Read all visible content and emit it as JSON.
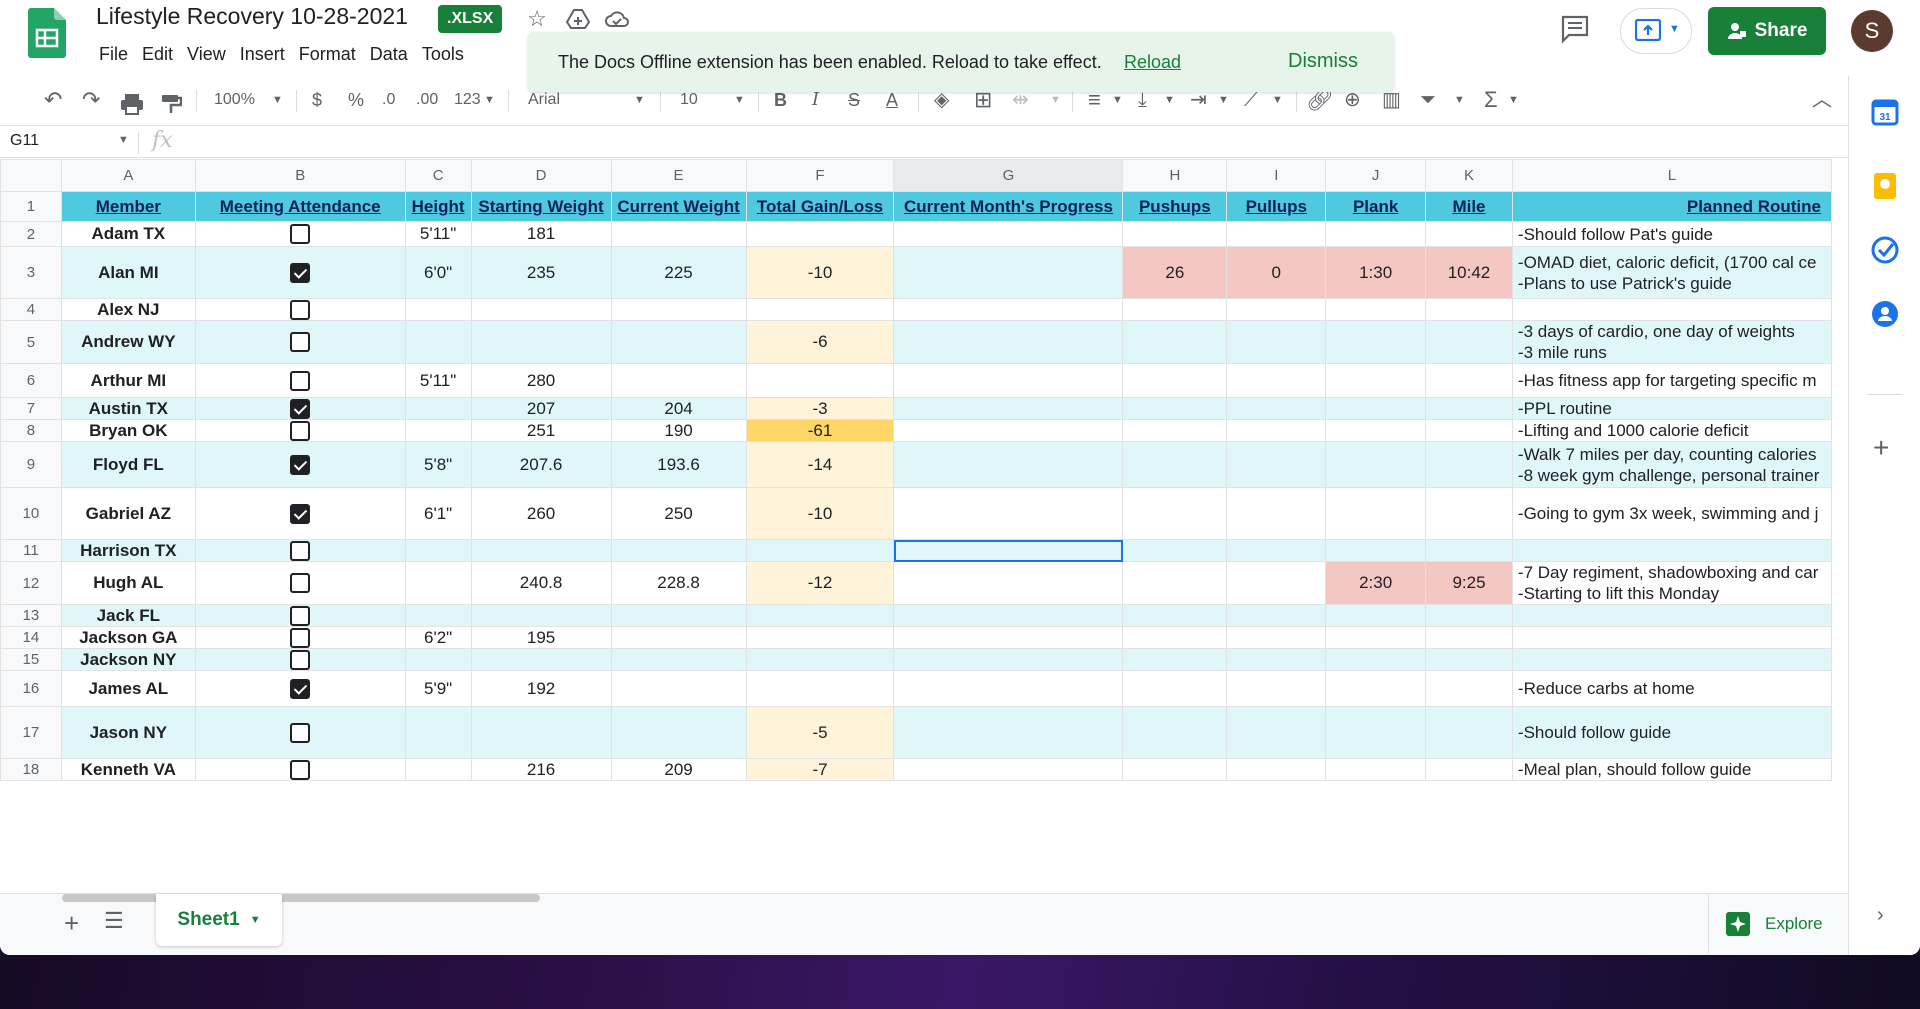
{
  "app": {
    "doc_title": "Lifestyle Recovery 10-28-2021",
    "file_badge": ".XLSX",
    "menu": [
      "File",
      "Edit",
      "View",
      "Insert",
      "Format",
      "Data",
      "Tools"
    ],
    "share_label": "Share",
    "avatar_letter": "S"
  },
  "toast": {
    "message": "The Docs Offline extension has been enabled. Reload to take effect.",
    "reload_label": "Reload",
    "dismiss_label": "Dismiss"
  },
  "toolbar": {
    "zoom": "100%",
    "currency": "$",
    "percent": "%",
    "dec_decrease": ".0",
    "dec_increase": ".00",
    "more_formats": "123",
    "font": "Arial",
    "font_size": "10",
    "bold": "B",
    "italic": "I",
    "strike": "S",
    "text_color": "A"
  },
  "formula_bar": {
    "name_box": "G11",
    "fx": "fx"
  },
  "grid": {
    "columns": [
      "A",
      "B",
      "C",
      "D",
      "E",
      "F",
      "G",
      "H",
      "I",
      "J",
      "K",
      "L"
    ],
    "selected_column": "G",
    "headers": [
      "Member",
      "Meeting Attendance",
      "Height",
      "Starting Weight",
      "Current Weight",
      "Total Gain/Loss",
      "Current Month's Progress",
      "Pushups",
      "Pullups",
      "Plank",
      "Mile",
      "Planned Routine"
    ],
    "rows": [
      {
        "num": "2",
        "member": "Adam TX",
        "att": false,
        "height": "5'11\"",
        "start": "181",
        "current": "",
        "gain": "",
        "pushups": "",
        "pullups": "",
        "plank": "",
        "mile": "",
        "routine": "-Should follow Pat's guide"
      },
      {
        "num": "3",
        "member": "Alan MI",
        "att": true,
        "height": "6'0\"",
        "start": "235",
        "current": "225",
        "gain": "-10",
        "pushups": "26",
        "pullups": "0",
        "plank": "1:30",
        "mile": "10:42",
        "routine": "-OMAD diet, caloric deficit, (1700 cal ce\n-Plans to use Patrick's guide"
      },
      {
        "num": "4",
        "member": "Alex NJ",
        "att": false,
        "height": "",
        "start": "",
        "current": "",
        "gain": "",
        "pushups": "",
        "pullups": "",
        "plank": "",
        "mile": "",
        "routine": ""
      },
      {
        "num": "5",
        "member": "Andrew WY",
        "att": false,
        "height": "",
        "start": "",
        "current": "",
        "gain": "-6",
        "pushups": "",
        "pullups": "",
        "plank": "",
        "mile": "",
        "routine": "-3 days of cardio, one day of weights\n-3 mile runs"
      },
      {
        "num": "6",
        "member": "Arthur MI",
        "att": false,
        "height": "5'11\"",
        "start": "280",
        "current": "",
        "gain": "",
        "pushups": "",
        "pullups": "",
        "plank": "",
        "mile": "",
        "routine": "-Has fitness app for targeting specific m"
      },
      {
        "num": "7",
        "member": "Austin TX",
        "att": true,
        "height": "",
        "start": "207",
        "current": "204",
        "gain": "-3",
        "pushups": "",
        "pullups": "",
        "plank": "",
        "mile": "",
        "routine": "-PPL routine"
      },
      {
        "num": "8",
        "member": "Bryan OK",
        "att": false,
        "height": "",
        "start": "251",
        "current": "190",
        "gain": "-61",
        "pushups": "",
        "pullups": "",
        "plank": "",
        "mile": "",
        "routine": "-Lifting and 1000 calorie deficit"
      },
      {
        "num": "9",
        "member": "Floyd FL",
        "att": true,
        "height": "5'8\"",
        "start": "207.6",
        "current": "193.6",
        "gain": "-14",
        "pushups": "",
        "pullups": "",
        "plank": "",
        "mile": "",
        "routine": "-Walk 7 miles per day, counting calories\n-8 week gym challenge, personal trainer"
      },
      {
        "num": "10",
        "member": "Gabriel AZ",
        "att": true,
        "height": "6'1\"",
        "start": "260",
        "current": "250",
        "gain": "-10",
        "pushups": "",
        "pullups": "",
        "plank": "",
        "mile": "",
        "routine": "-Going to gym 3x week, swimming and j"
      },
      {
        "num": "11",
        "member": "Harrison TX",
        "att": false,
        "height": "",
        "start": "",
        "current": "",
        "gain": "",
        "pushups": "",
        "pullups": "",
        "plank": "",
        "mile": "",
        "routine": ""
      },
      {
        "num": "12",
        "member": "Hugh AL",
        "att": false,
        "height": "",
        "start": "240.8",
        "current": "228.8",
        "gain": "-12",
        "pushups": "",
        "pullups": "",
        "plank": "2:30",
        "mile": "9:25",
        "routine": "-7 Day regiment, shadowboxing and car\n-Starting to lift this Monday"
      },
      {
        "num": "13",
        "member": "Jack FL",
        "att": false,
        "height": "",
        "start": "",
        "current": "",
        "gain": "",
        "pushups": "",
        "pullups": "",
        "plank": "",
        "mile": "",
        "routine": ""
      },
      {
        "num": "14",
        "member": "Jackson GA",
        "att": false,
        "height": "6'2\"",
        "start": "195",
        "current": "",
        "gain": "",
        "pushups": "",
        "pullups": "",
        "plank": "",
        "mile": "",
        "routine": ""
      },
      {
        "num": "15",
        "member": "Jackson NY",
        "att": false,
        "height": "",
        "start": "",
        "current": "",
        "gain": "",
        "pushups": "",
        "pullups": "",
        "plank": "",
        "mile": "",
        "routine": ""
      },
      {
        "num": "16",
        "member": "James AL",
        "att": true,
        "height": "5'9\"",
        "start": "192",
        "current": "",
        "gain": "",
        "pushups": "",
        "pullups": "",
        "plank": "",
        "mile": "",
        "routine": "-Reduce carbs at home"
      },
      {
        "num": "17",
        "member": "Jason NY",
        "att": false,
        "height": "",
        "start": "",
        "current": "",
        "gain": "-5",
        "pushups": "",
        "pullups": "",
        "plank": "",
        "mile": "",
        "routine": "-Should follow guide"
      },
      {
        "num": "18",
        "member": "Kenneth VA",
        "att": false,
        "height": "",
        "start": "216",
        "current": "209",
        "gain": "-7",
        "pushups": "",
        "pullups": "",
        "plank": "",
        "mile": "",
        "routine": "-Meal plan, should follow guide"
      }
    ]
  },
  "bottom": {
    "sheet_name": "Sheet1",
    "explore_label": "Explore"
  },
  "colors": {
    "brand_green": "#188038",
    "header_cyan": "#4ec9df",
    "row_cyan": "#e0f7fa",
    "gain_light": "#fff3d9",
    "gain_strong": "#ffd666",
    "fitness_pink": "#f4c7c3",
    "selection_blue": "#1a73e8"
  }
}
